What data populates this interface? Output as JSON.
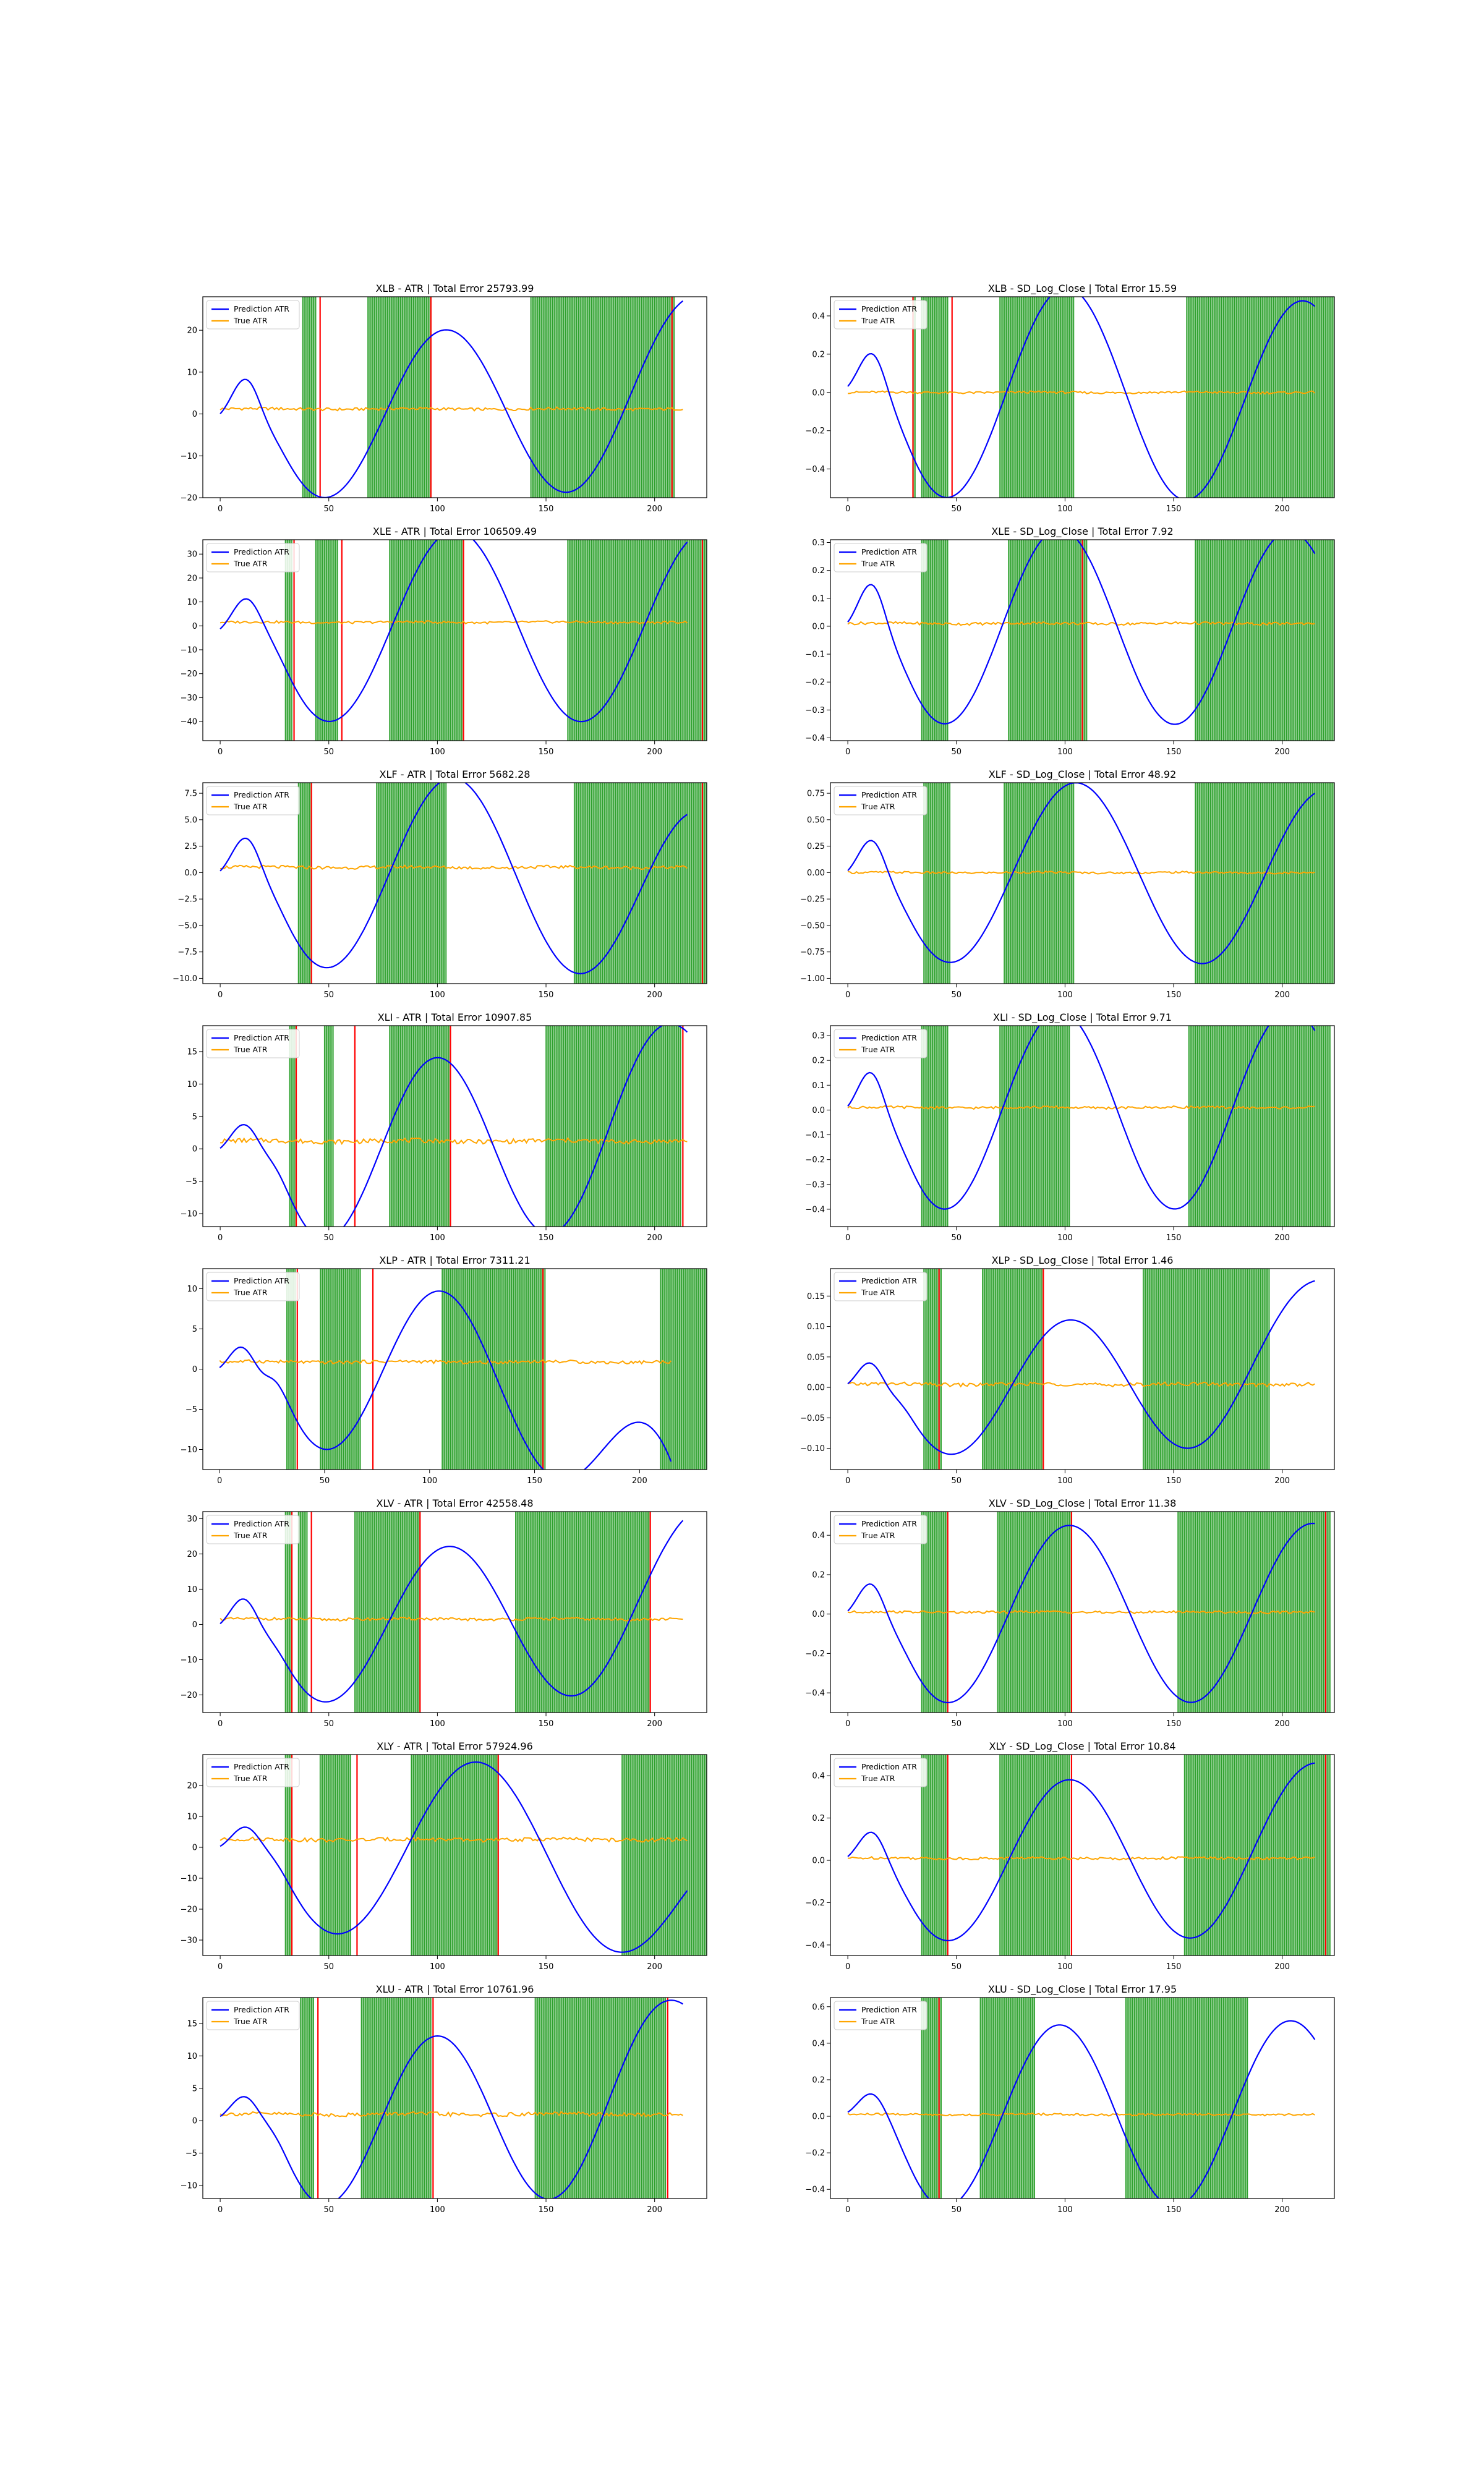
{
  "legend": {
    "prediction": "Prediction ATR",
    "true": "True ATR"
  },
  "colors": {
    "prediction": "#0000ff",
    "true": "#ffa500",
    "green": "#2ca02c",
    "red": "#ff0000",
    "axis": "#000000"
  },
  "chart_data": [
    {
      "type": "line",
      "title": "XLB - ATR | Total Error 25793.99",
      "xlim": [
        -8,
        224
      ],
      "ylim": [
        -20,
        28
      ],
      "xticks": [
        0,
        50,
        100,
        150,
        200
      ],
      "yticks": [
        -20,
        -10,
        0,
        10,
        20
      ],
      "pred": {
        "start": 1,
        "a1": 7,
        "per1": 36,
        "mid": 20,
        "a2": 20,
        "per2": 112,
        "ph": 0.72,
        "end": 27,
        "x_end": 213
      },
      "true": {
        "level": 1.2,
        "noise": 0.35,
        "x_end": 213
      },
      "green": [
        [
          38,
          44
        ],
        [
          68,
          97
        ],
        [
          143,
          209
        ]
      ],
      "red": [
        46,
        97,
        208
      ],
      "series": [
        {
          "name": "Prediction ATR"
        },
        {
          "name": "True ATR"
        }
      ],
      "legend_loc": "upper left"
    },
    {
      "type": "line",
      "title": "XLB - SD_Log_Close | Total Error 15.59",
      "xlim": [
        -8,
        224
      ],
      "ylim": [
        -0.55,
        0.5
      ],
      "xticks": [
        0,
        50,
        100,
        150,
        200
      ],
      "yticks": [
        -0.4,
        -0.2,
        0,
        0.2,
        0.4
      ],
      "pred": {
        "start": 0.05,
        "a1": 0.15,
        "per1": 34,
        "mid": 18,
        "a2": 0.55,
        "per2": 110,
        "ph": 0.72,
        "end": 0.45,
        "x_end": 215
      },
      "true": {
        "level": 0.0,
        "noise": 0.006,
        "x_end": 215
      },
      "green": [
        [
          30,
          31
        ],
        [
          34,
          46
        ],
        [
          70,
          104
        ],
        [
          156,
          224
        ]
      ],
      "red": [
        30,
        48
      ],
      "series": [
        {
          "name": "Prediction ATR"
        },
        {
          "name": "True ATR"
        }
      ],
      "legend_loc": "upper left"
    },
    {
      "type": "line",
      "title": "XLE - ATR | Total Error 106509.49",
      "xlim": [
        -8,
        224
      ],
      "ylim": [
        -48,
        36
      ],
      "xticks": [
        0,
        50,
        100,
        150,
        200
      ],
      "yticks": [
        -40,
        -30,
        -20,
        -10,
        0,
        10,
        20,
        30
      ],
      "pred": {
        "start": 0,
        "a1": 10,
        "per1": 36,
        "mid": 20,
        "a2": 40,
        "per2": 116,
        "ph": 0.7,
        "end": 35,
        "x_end": 215
      },
      "true": {
        "level": 1.5,
        "noise": 0.5,
        "x_end": 215
      },
      "green": [
        [
          30,
          33
        ],
        [
          44,
          54
        ],
        [
          78,
          112
        ],
        [
          160,
          224
        ]
      ],
      "red": [
        34,
        56,
        112,
        222
      ],
      "series": [
        {
          "name": "Prediction ATR"
        },
        {
          "name": "True ATR"
        }
      ],
      "legend_loc": "upper left"
    },
    {
      "type": "line",
      "title": "XLE - SD_Log_Close | Total Error 7.92",
      "xlim": [
        -8,
        224
      ],
      "ylim": [
        -0.41,
        0.31
      ],
      "xticks": [
        0,
        50,
        100,
        150,
        200
      ],
      "yticks": [
        -0.4,
        -0.3,
        -0.2,
        -0.1,
        0,
        0.1,
        0.2,
        0.3
      ],
      "pred": {
        "start": 0.03,
        "a1": 0.12,
        "per1": 34,
        "mid": 18,
        "a2": 0.35,
        "per2": 106,
        "ph": 0.72,
        "end": 0.26,
        "x_end": 215
      },
      "true": {
        "level": 0.01,
        "noise": 0.005,
        "x_end": 215
      },
      "green": [
        [
          34,
          46
        ],
        [
          74,
          110
        ],
        [
          160,
          224
        ]
      ],
      "red": [
        108
      ],
      "series": [
        {
          "name": "Prediction ATR"
        },
        {
          "name": "True ATR"
        }
      ],
      "legend_loc": "upper left"
    },
    {
      "type": "line",
      "title": "XLF - ATR | Total Error 5682.28",
      "xlim": [
        -8,
        224
      ],
      "ylim": [
        -10.5,
        8.5
      ],
      "xticks": [
        0,
        50,
        100,
        150,
        200
      ],
      "yticks": [
        -10,
        -7.5,
        -5,
        -2.5,
        0,
        2.5,
        5,
        7.5
      ],
      "pred": {
        "start": 0.5,
        "a1": 2.6,
        "per1": 36,
        "mid": 20,
        "a2": 9.0,
        "per2": 116,
        "ph": 0.72,
        "end": 5.5,
        "x_end": 215
      },
      "true": {
        "level": 0.5,
        "noise": 0.15,
        "x_end": 215
      },
      "green": [
        [
          36,
          42
        ],
        [
          72,
          104
        ],
        [
          163,
          224
        ]
      ],
      "red": [
        42,
        222
      ],
      "series": [
        {
          "name": "Prediction ATR"
        },
        {
          "name": "True ATR"
        }
      ],
      "legend_loc": "upper left"
    },
    {
      "type": "line",
      "title": "XLF - SD_Log_Close | Total Error 48.92",
      "xlim": [
        -8,
        224
      ],
      "ylim": [
        -1.05,
        0.85
      ],
      "xticks": [
        0,
        50,
        100,
        150,
        200
      ],
      "yticks": [
        -1,
        -0.75,
        -0.5,
        -0.25,
        0,
        0.25,
        0.5,
        0.75
      ],
      "pred": {
        "start": 0.05,
        "a1": 0.25,
        "per1": 34,
        "mid": 18,
        "a2": 0.85,
        "per2": 116,
        "ph": 0.72,
        "end": 0.75,
        "x_end": 215
      },
      "true": {
        "level": 0.0,
        "noise": 0.01,
        "x_end": 215
      },
      "green": [
        [
          35,
          47
        ],
        [
          72,
          104
        ],
        [
          160,
          224
        ]
      ],
      "red": [],
      "series": [
        {
          "name": "Prediction ATR"
        },
        {
          "name": "True ATR"
        }
      ],
      "legend_loc": "upper left"
    },
    {
      "type": "line",
      "title": "XLI - ATR | Total Error 10907.85",
      "xlim": [
        -8,
        224
      ],
      "ylim": [
        -12,
        19
      ],
      "xticks": [
        0,
        50,
        100,
        150,
        200
      ],
      "yticks": [
        -10,
        -5,
        0,
        5,
        10,
        15
      ],
      "pred": {
        "start": 0.5,
        "a1": 3,
        "per1": 32,
        "mid": 22,
        "a2": 14,
        "per2": 104,
        "ph": 0.72,
        "end": 18,
        "x_end": 215
      },
      "true": {
        "level": 1.2,
        "noise": 0.35,
        "x_end": 215
      },
      "green": [
        [
          32,
          35
        ],
        [
          48,
          52
        ],
        [
          78,
          106
        ],
        [
          150,
          212
        ]
      ],
      "red": [
        35,
        62,
        106,
        213
      ],
      "series": [
        {
          "name": "Prediction ATR"
        },
        {
          "name": "True ATR"
        }
      ],
      "legend_loc": "upper left"
    },
    {
      "type": "line",
      "title": "XLI - SD_Log_Close | Total Error 9.71",
      "xlim": [
        -8,
        224
      ],
      "ylim": [
        -0.47,
        0.34
      ],
      "xticks": [
        0,
        50,
        100,
        150,
        200
      ],
      "yticks": [
        -0.4,
        -0.3,
        -0.2,
        -0.1,
        0,
        0.1,
        0.2,
        0.3
      ],
      "pred": {
        "start": 0.03,
        "a1": 0.12,
        "per1": 32,
        "mid": 18,
        "a2": 0.4,
        "per2": 106,
        "ph": 0.72,
        "end": 0.32,
        "x_end": 215
      },
      "true": {
        "level": 0.01,
        "noise": 0.005,
        "x_end": 215
      },
      "green": [
        [
          34,
          46
        ],
        [
          70,
          102
        ],
        [
          157,
          222
        ]
      ],
      "red": [],
      "series": [
        {
          "name": "Prediction ATR"
        },
        {
          "name": "True ATR"
        }
      ],
      "legend_loc": "upper left"
    },
    {
      "type": "line",
      "title": "XLP - ATR | Total Error 7311.21",
      "xlim": [
        -8,
        232
      ],
      "ylim": [
        -12.5,
        12.5
      ],
      "xticks": [
        0,
        50,
        100,
        150,
        200
      ],
      "yticks": [
        -10,
        -5,
        0,
        5,
        10
      ],
      "pred": {
        "start": 0.5,
        "a1": 2.2,
        "per1": 30,
        "mid": 24,
        "a2": 10,
        "per2": 108,
        "ph": 0.72,
        "end": -11.5,
        "x_end": 215
      },
      "true": {
        "level": 0.9,
        "noise": 0.2,
        "x_end": 215
      },
      "green": [
        [
          32,
          36
        ],
        [
          48,
          67
        ],
        [
          106,
          155
        ],
        [
          210,
          232
        ]
      ],
      "red": [
        37,
        73,
        154
      ],
      "series": [
        {
          "name": "Prediction ATR"
        },
        {
          "name": "True ATR"
        }
      ],
      "legend_loc": "upper left"
    },
    {
      "type": "line",
      "title": "XLP - SD_Log_Close | Total Error 1.46",
      "xlim": [
        -8,
        224
      ],
      "ylim": [
        -0.135,
        0.195
      ],
      "xticks": [
        0,
        50,
        100,
        150,
        200
      ],
      "yticks": [
        -0.1,
        -0.05,
        0,
        0.05,
        0.1,
        0.15
      ],
      "pred": {
        "start": 0.01,
        "a1": 0.03,
        "per1": 30,
        "mid": 20,
        "a2": 0.11,
        "per2": 110,
        "ph": 0.72,
        "end": 0.175,
        "x_end": 215
      },
      "true": {
        "level": 0.005,
        "noise": 0.003,
        "x_end": 215
      },
      "green": [
        [
          35,
          43
        ],
        [
          62,
          90
        ],
        [
          136,
          194
        ]
      ],
      "red": [
        42,
        90
      ],
      "series": [
        {
          "name": "Prediction ATR"
        },
        {
          "name": "True ATR"
        }
      ],
      "legend_loc": "upper left"
    },
    {
      "type": "line",
      "title": "XLV - ATR | Total Error 42558.48",
      "xlim": [
        -8,
        224
      ],
      "ylim": [
        -25,
        32
      ],
      "xticks": [
        0,
        50,
        100,
        150,
        200
      ],
      "yticks": [
        -20,
        -10,
        0,
        10,
        20,
        30
      ],
      "pred": {
        "start": 1,
        "a1": 6,
        "per1": 32,
        "mid": 20,
        "a2": 22,
        "per2": 114,
        "ph": 0.72,
        "end": 29.5,
        "x_end": 213
      },
      "true": {
        "level": 1.5,
        "noise": 0.4,
        "x_end": 213
      },
      "green": [
        [
          30,
          33
        ],
        [
          36,
          40
        ],
        [
          62,
          92
        ],
        [
          136,
          198
        ]
      ],
      "red": [
        33,
        42,
        92,
        198
      ],
      "series": [
        {
          "name": "Prediction ATR"
        },
        {
          "name": "True ATR"
        }
      ],
      "legend_loc": "upper left"
    },
    {
      "type": "line",
      "title": "XLV - SD_Log_Close | Total Error 11.38",
      "xlim": [
        -8,
        224
      ],
      "ylim": [
        -0.5,
        0.52
      ],
      "xticks": [
        0,
        50,
        100,
        150,
        200
      ],
      "yticks": [
        -0.4,
        -0.2,
        0,
        0.2,
        0.4
      ],
      "pred": {
        "start": 0.03,
        "a1": 0.12,
        "per1": 32,
        "mid": 18,
        "a2": 0.45,
        "per2": 112,
        "ph": 0.72,
        "end": 0.46,
        "x_end": 215
      },
      "true": {
        "level": 0.01,
        "noise": 0.006,
        "x_end": 215
      },
      "green": [
        [
          34,
          46
        ],
        [
          69,
          103
        ],
        [
          152,
          222
        ]
      ],
      "red": [
        46,
        103,
        220
      ],
      "series": [
        {
          "name": "Prediction ATR"
        },
        {
          "name": "True ATR"
        }
      ],
      "legend_loc": "upper left"
    },
    {
      "type": "line",
      "title": "XLY - ATR | Total Error 57924.96",
      "xlim": [
        -8,
        224
      ],
      "ylim": [
        -35,
        30
      ],
      "xticks": [
        0,
        50,
        100,
        150,
        200
      ],
      "yticks": [
        -30,
        -20,
        -10,
        0,
        10,
        20
      ],
      "pred": {
        "start": 1,
        "a1": 5,
        "per1": 34,
        "mid": 22,
        "a2": 28,
        "per2": 128,
        "ph": 0.72,
        "end": -14,
        "x_end": 215
      },
      "true": {
        "level": 2.5,
        "noise": 0.6,
        "x_end": 215
      },
      "green": [
        [
          30,
          33
        ],
        [
          46,
          60
        ],
        [
          88,
          128
        ],
        [
          185,
          224
        ]
      ],
      "red": [
        33,
        63,
        128
      ],
      "series": [
        {
          "name": "Prediction ATR"
        },
        {
          "name": "True ATR"
        }
      ],
      "legend_loc": "upper left"
    },
    {
      "type": "line",
      "title": "XLY - SD_Log_Close | Total Error 10.84",
      "xlim": [
        -8,
        224
      ],
      "ylim": [
        -0.45,
        0.5
      ],
      "xticks": [
        0,
        50,
        100,
        150,
        200
      ],
      "yticks": [
        -0.4,
        -0.2,
        0,
        0.2,
        0.4
      ],
      "pred": {
        "start": 0.03,
        "a1": 0.1,
        "per1": 34,
        "mid": 18,
        "a2": 0.38,
        "per2": 112,
        "ph": 0.72,
        "end": 0.46,
        "x_end": 215
      },
      "true": {
        "level": 0.01,
        "noise": 0.006,
        "x_end": 215
      },
      "green": [
        [
          34,
          46
        ],
        [
          70,
          102
        ],
        [
          155,
          222
        ]
      ],
      "red": [
        46,
        103,
        220
      ],
      "series": [
        {
          "name": "Prediction ATR"
        },
        {
          "name": "True ATR"
        }
      ],
      "legend_loc": "upper left"
    },
    {
      "type": "line",
      "title": "XLU - ATR | Total Error 10761.96",
      "xlim": [
        -8,
        224
      ],
      "ylim": [
        -12,
        19
      ],
      "xticks": [
        0,
        50,
        100,
        150,
        200
      ],
      "yticks": [
        -10,
        -5,
        0,
        5,
        10,
        15
      ],
      "pred": {
        "start": 1,
        "a1": 2.5,
        "per1": 32,
        "mid": 22,
        "a2": 13,
        "per2": 104,
        "ph": 0.72,
        "end": 18,
        "x_end": 213
      },
      "true": {
        "level": 1,
        "noise": 0.3,
        "x_end": 213
      },
      "green": [
        [
          37,
          43
        ],
        [
          65,
          97
        ],
        [
          145,
          205
        ]
      ],
      "red": [
        45,
        98,
        206
      ],
      "series": [
        {
          "name": "Prediction ATR"
        },
        {
          "name": "True ATR"
        }
      ],
      "legend_loc": "upper left"
    },
    {
      "type": "line",
      "title": "XLU - SD_Log_Close | Total Error 17.95",
      "xlim": [
        -8,
        224
      ],
      "ylim": [
        -0.45,
        0.65
      ],
      "xticks": [
        0,
        50,
        100,
        150,
        200
      ],
      "yticks": [
        -0.4,
        -0.2,
        0,
        0.2,
        0.4,
        0.6
      ],
      "pred": {
        "start": 0.03,
        "a1": 0.08,
        "per1": 32,
        "mid": 18,
        "a2": 0.5,
        "per2": 106,
        "ph": 0.72,
        "end": 0.42,
        "x_end": 215
      },
      "true": {
        "level": 0.01,
        "noise": 0.006,
        "x_end": 215
      },
      "green": [
        [
          34,
          43
        ],
        [
          61,
          86
        ],
        [
          128,
          184
        ]
      ],
      "red": [
        42
      ],
      "series": [
        {
          "name": "Prediction ATR"
        },
        {
          "name": "True ATR"
        }
      ],
      "legend_loc": "upper left"
    }
  ]
}
